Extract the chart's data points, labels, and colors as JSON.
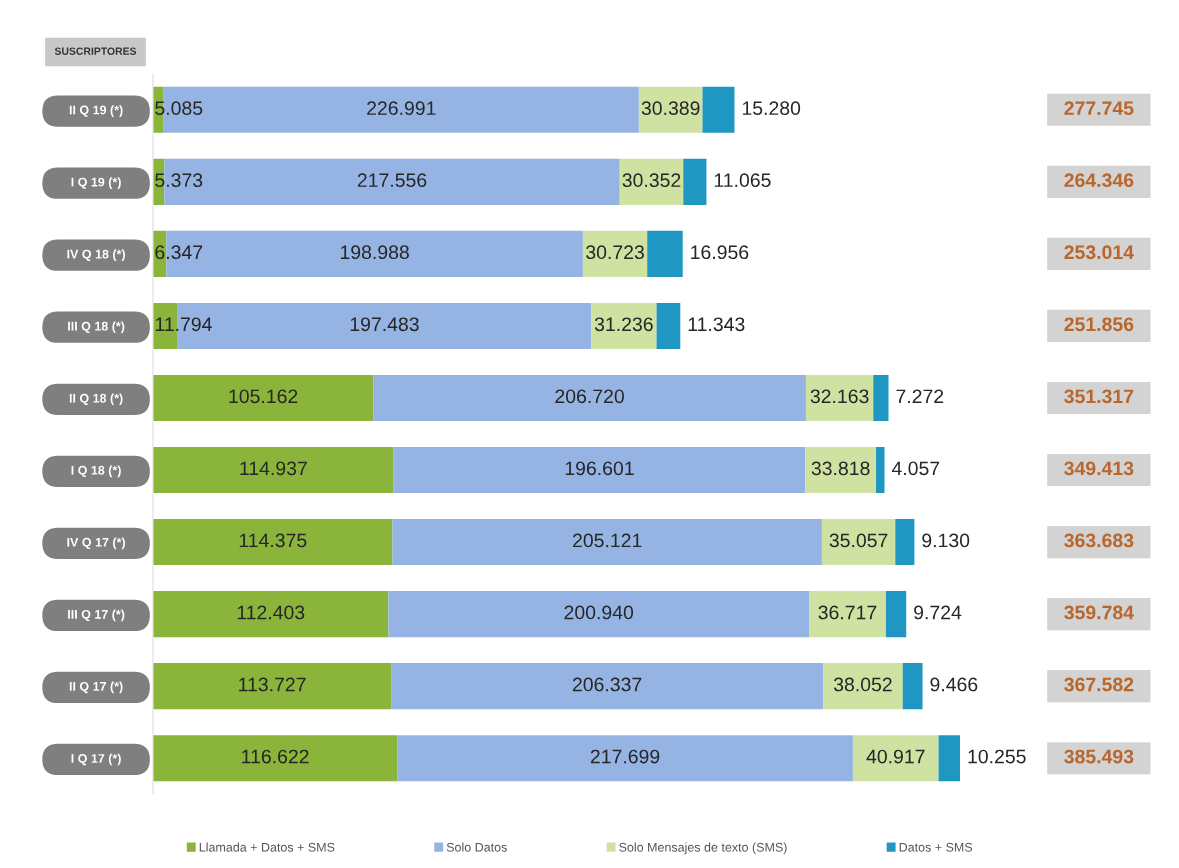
{
  "chart_data": {
    "type": "bar",
    "title": "SUSCRIPTORES",
    "orientation": "horizontal",
    "stacked": true,
    "tick_labels": "y",
    "legend": "bottom",
    "categories": [
      "II Q 19 (*)",
      "I Q 19 (*)",
      "IV Q 18 (*)",
      "III Q 18 (*)",
      "II Q 18 (*)",
      "I Q 18 (*)",
      "IV Q 17 (*)",
      "III Q 17 (*)",
      "II Q 17 (*)",
      "I Q 17 (*)"
    ],
    "series": [
      {
        "name": "Llamada + Datos + SMS",
        "color": "#8bb43a",
        "values": [
          5085,
          5373,
          6347,
          11794,
          105162,
          114937,
          114375,
          112403,
          113727,
          116622
        ],
        "value_labels": [
          "5.085",
          "5.373",
          "6.347",
          "11.794",
          "105.162",
          "114.937",
          "114.375",
          "112.403",
          "113.727",
          "116.622"
        ]
      },
      {
        "name": "Solo Datos",
        "color": "#95b4e4",
        "values": [
          226991,
          217556,
          198988,
          197483,
          206720,
          196601,
          205121,
          200940,
          206337,
          217699
        ],
        "value_labels": [
          "226.991",
          "217.556",
          "198.988",
          "197.483",
          "206.720",
          "196.601",
          "205.121",
          "200.940",
          "206.337",
          "217.699"
        ]
      },
      {
        "name": "Solo Mensajes de texto (SMS)",
        "color": "#cfe2a2",
        "values": [
          30389,
          30352,
          30723,
          31236,
          32163,
          33818,
          35057,
          36717,
          38052,
          40917
        ],
        "value_labels": [
          "30.389",
          "30.352",
          "30.723",
          "31.236",
          "32.163",
          "33.818",
          "35.057",
          "36.717",
          "38.052",
          "40.917"
        ]
      },
      {
        "name": "Datos + SMS",
        "color": "#1f97c2",
        "values": [
          15280,
          11065,
          16956,
          11343,
          7272,
          4057,
          9130,
          9724,
          9466,
          10255
        ],
        "value_labels": [
          "15.280",
          "11.065",
          "16.956",
          "11.343",
          "7.272",
          "4.057",
          "9.130",
          "9.724",
          "9.466",
          "10.255"
        ]
      }
    ],
    "annotations": [
      "277.745",
      "264.346",
      "253.014",
      "251.856",
      "351.317",
      "349.413",
      "363.683",
      "359.784",
      "367.582",
      "385.493"
    ]
  }
}
